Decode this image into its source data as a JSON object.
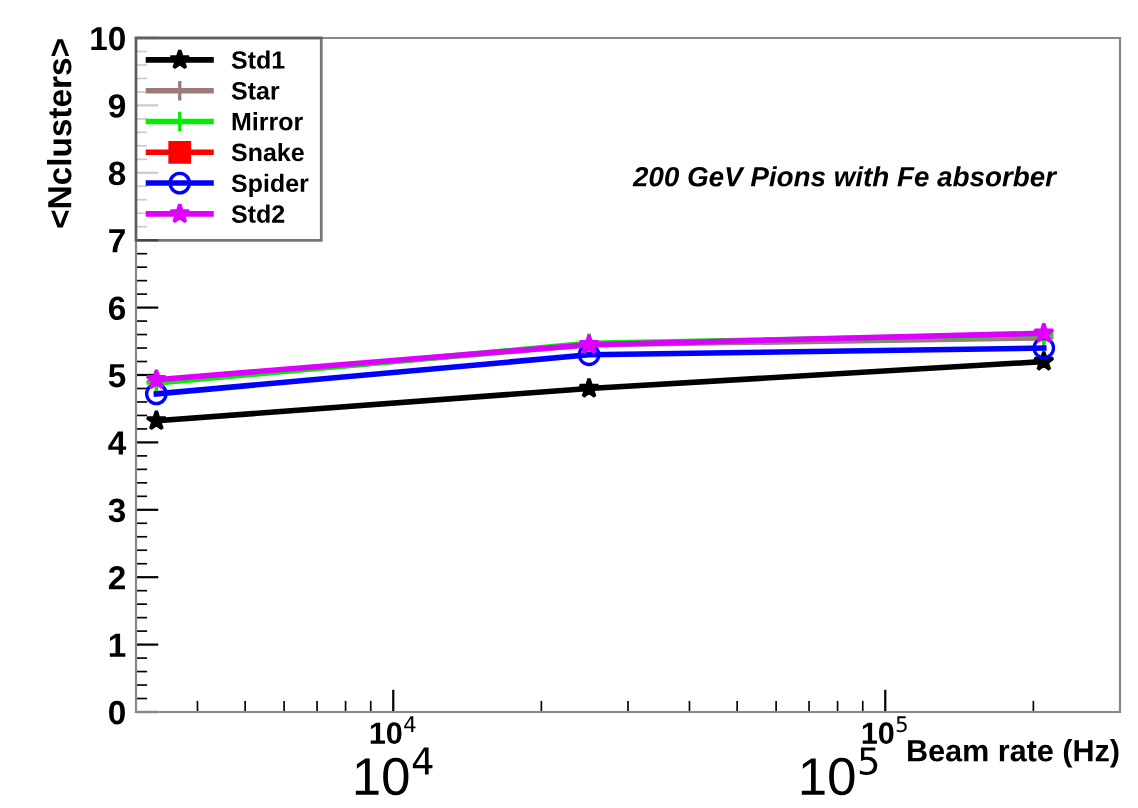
{
  "chart_data": {
    "type": "line",
    "title": "200 GeV Pions with Fe absorber",
    "xlabel": "Beam rate (Hz)",
    "ylabel": "<Nclusters>",
    "x": [
      3300,
      25000,
      210000
    ],
    "log": "x",
    "xlim": [
      3000,
      300000
    ],
    "xticks": [
      {
        "value": 10000,
        "label": "10$^{4}$"
      },
      {
        "value": 100000,
        "label": "10$^{5}$"
      }
    ],
    "ylim": [
      0,
      10
    ],
    "yticks": [
      0,
      1,
      2,
      3,
      4,
      5,
      6,
      7,
      8,
      9,
      10
    ],
    "grid": false,
    "legend": "top left",
    "series": [
      {
        "name": "Std1",
        "color": "#000000",
        "marker": "star",
        "values": [
          4.32,
          4.8,
          5.2
        ]
      },
      {
        "name": "Star",
        "color": "#9c7a7a",
        "marker": "cross",
        "values": [
          4.9,
          5.45,
          5.55
        ]
      },
      {
        "name": "Mirror",
        "color": "#00ee00",
        "marker": "cross",
        "values": [
          4.88,
          5.47,
          5.6
        ]
      },
      {
        "name": "Snake",
        "color": "#ff0000",
        "marker": "square",
        "values": [
          null,
          null,
          null
        ]
      },
      {
        "name": "Spider",
        "color": "#0000ff",
        "marker": "circle",
        "values": [
          4.72,
          5.3,
          5.4
        ]
      },
      {
        "name": "Std2",
        "color": "#dd00ff",
        "marker": "star",
        "values": [
          4.93,
          5.45,
          5.62
        ]
      }
    ],
    "annotations": [
      "10$^{4}$",
      "10$^{5}$"
    ]
  }
}
